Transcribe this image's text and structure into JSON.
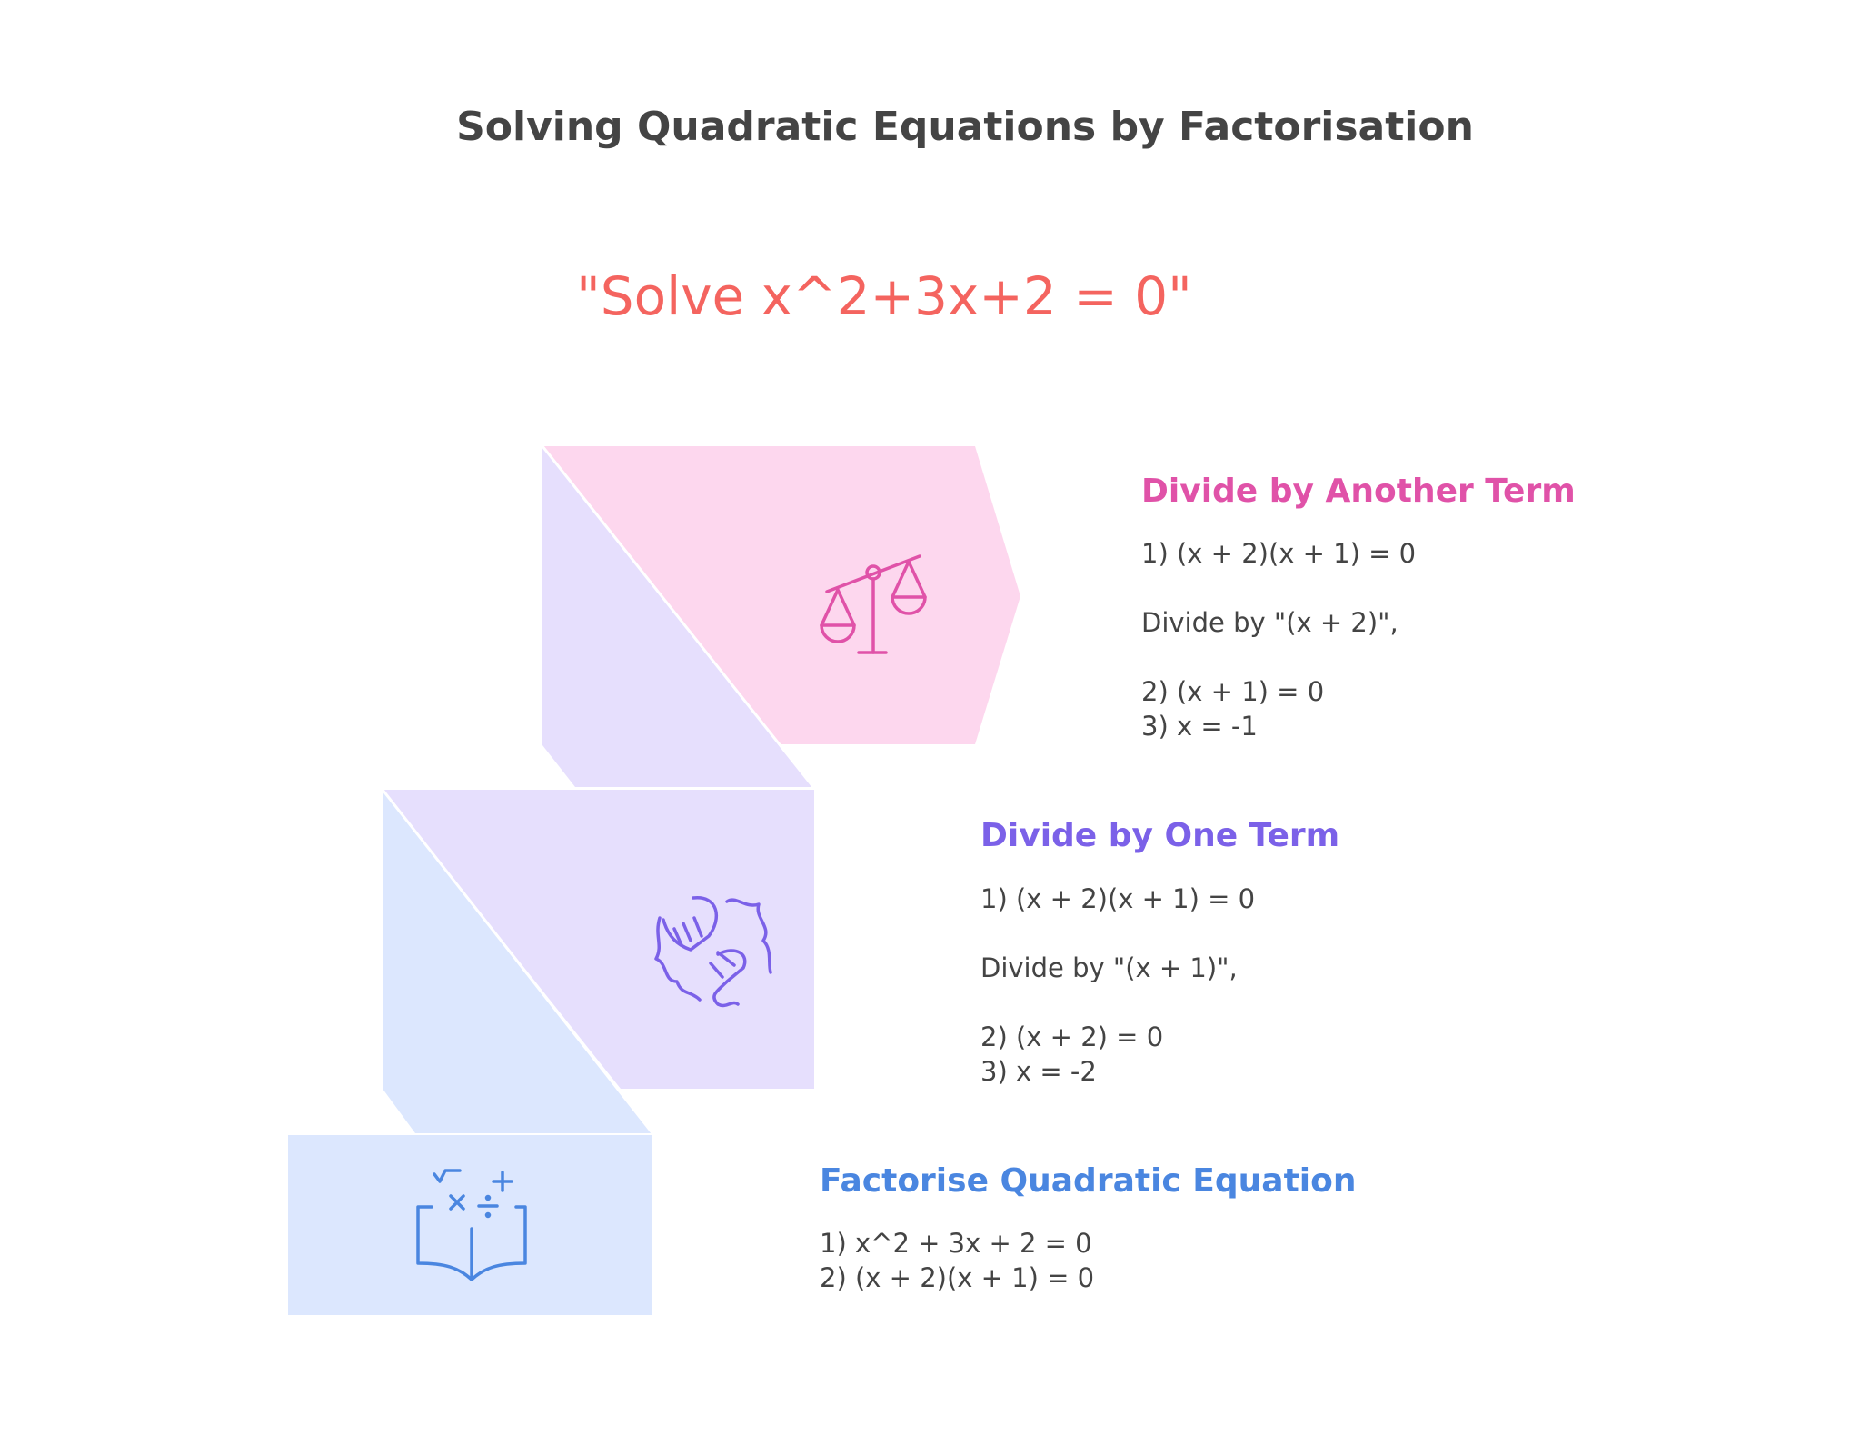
{
  "title": "Solving Quadratic Equations by Factorisation",
  "problem": "\"Solve x^2+3x+2 = 0\"",
  "steps": [
    {
      "heading": "Divide by Another Term",
      "color": "#E052A8",
      "fill": "#FDD7EE",
      "icon": "balance-scale-icon",
      "lines": [
        "1) (x + 2)(x + 1) = 0",
        "Divide by \"(x + 2)\",",
        "2) (x + 1) = 0",
        "3) x = -1"
      ]
    },
    {
      "heading": "Divide by One Term",
      "color": "#7B61E8",
      "fill": "#E6DFFD",
      "icon": "handshake-icon",
      "lines": [
        "1) (x + 2)(x + 1) = 0",
        "Divide by \"(x + 1)\",",
        "2) (x + 2) = 0",
        "3) x = -2"
      ]
    },
    {
      "heading": "Factorise Quadratic Equation",
      "color": "#4A86E0",
      "fill": "#DCE7FE",
      "icon": "math-book-icon",
      "lines": [
        "1) x^2 + 3x + 2 = 0",
        "2) (x + 2)(x + 1) = 0"
      ]
    }
  ]
}
